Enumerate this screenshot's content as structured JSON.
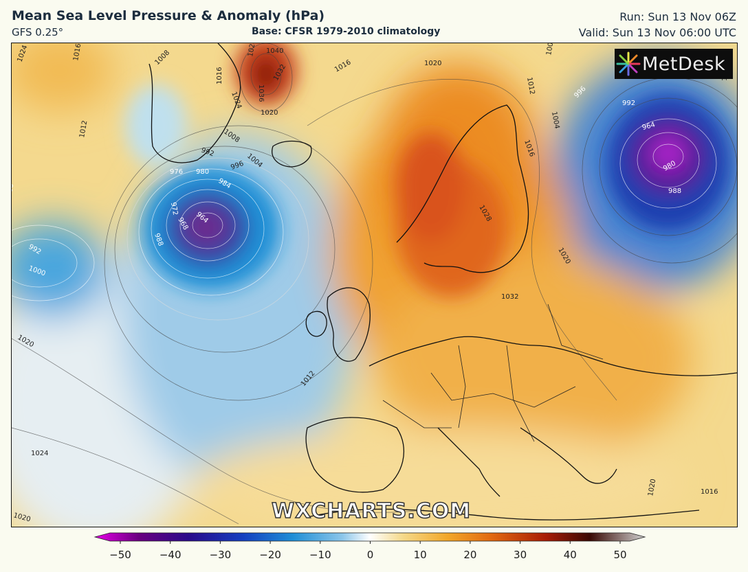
{
  "header": {
    "title": "Mean Sea Level Pressure & Anomaly (hPa)",
    "model": "GFS 0.25°",
    "base": "Base: CFSR 1979-2010 climatology",
    "run": "Run: Sun 13 Nov 06Z",
    "valid": "Valid: Sun 13 Nov 06:00 UTC"
  },
  "logo": {
    "text": "MetDesk",
    "icon": "metdesk-starburst-icon"
  },
  "watermark": "WXCHARTS.COM",
  "isobar_labels": [
    {
      "id": "l1024a",
      "text": "1024"
    },
    {
      "id": "l1016a",
      "text": "1016"
    },
    {
      "id": "l1008a",
      "text": "1008"
    },
    {
      "id": "l1028",
      "text": "1028"
    },
    {
      "id": "l1040",
      "text": "1040"
    },
    {
      "id": "l1036",
      "text": "1036"
    },
    {
      "id": "l1032",
      "text": "1032"
    },
    {
      "id": "l1016b",
      "text": "1016"
    },
    {
      "id": "l1024b",
      "text": "1024"
    },
    {
      "id": "l1020a",
      "text": "1020"
    },
    {
      "id": "l1016c",
      "text": "1016"
    },
    {
      "id": "l1020b",
      "text": "1020"
    },
    {
      "id": "l1012a",
      "text": "1012"
    },
    {
      "id": "l1008b",
      "text": "1008"
    },
    {
      "id": "l1004a",
      "text": "1004"
    },
    {
      "id": "l996a",
      "text": "996"
    },
    {
      "id": "l992a",
      "text": "992"
    },
    {
      "id": "l976",
      "text": "976"
    },
    {
      "id": "l980a",
      "text": "980"
    },
    {
      "id": "l984",
      "text": "984"
    },
    {
      "id": "l972",
      "text": "972"
    },
    {
      "id": "l968",
      "text": "968"
    },
    {
      "id": "l964a",
      "text": "964"
    },
    {
      "id": "l988a",
      "text": "988"
    },
    {
      "id": "l1000a",
      "text": "1000"
    },
    {
      "id": "l992b",
      "text": "992"
    },
    {
      "id": "l1000b",
      "text": "1000"
    },
    {
      "id": "l1020c",
      "text": "1020"
    },
    {
      "id": "l1024c",
      "text": "1024"
    },
    {
      "id": "l1012b",
      "text": "1012"
    },
    {
      "id": "l1020d",
      "text": "1020"
    },
    {
      "id": "l1028b",
      "text": "1028"
    },
    {
      "id": "l1032b",
      "text": "1032"
    },
    {
      "id": "l1020e",
      "text": "1020"
    },
    {
      "id": "l996b",
      "text": "996"
    },
    {
      "id": "l992c",
      "text": "992"
    },
    {
      "id": "l964b",
      "text": "964"
    },
    {
      "id": "l980b",
      "text": "980"
    },
    {
      "id": "l988b",
      "text": "988"
    },
    {
      "id": "l1008c",
      "text": "1008"
    },
    {
      "id": "l1004b",
      "text": "1004"
    },
    {
      "id": "l1012c",
      "text": "1012"
    },
    {
      "id": "l1016d",
      "text": "1016"
    },
    {
      "id": "l1020f",
      "text": "1020"
    },
    {
      "id": "l1004c",
      "text": "1004"
    },
    {
      "id": "l1016e",
      "text": "1016"
    }
  ],
  "colorbar": {
    "ticks": [
      "−50",
      "−40",
      "−30",
      "−20",
      "−10",
      "0",
      "10",
      "20",
      "30",
      "40",
      "50"
    ],
    "stops": [
      "#e600e6",
      "#6a0080",
      "#2a0a8a",
      "#1540c0",
      "#1f8fd6",
      "#8cc6ea",
      "#ffffff",
      "#f5d98a",
      "#f2a82a",
      "#e26a10",
      "#a81c05",
      "#3a0a04",
      "#d0d0d0"
    ]
  }
}
